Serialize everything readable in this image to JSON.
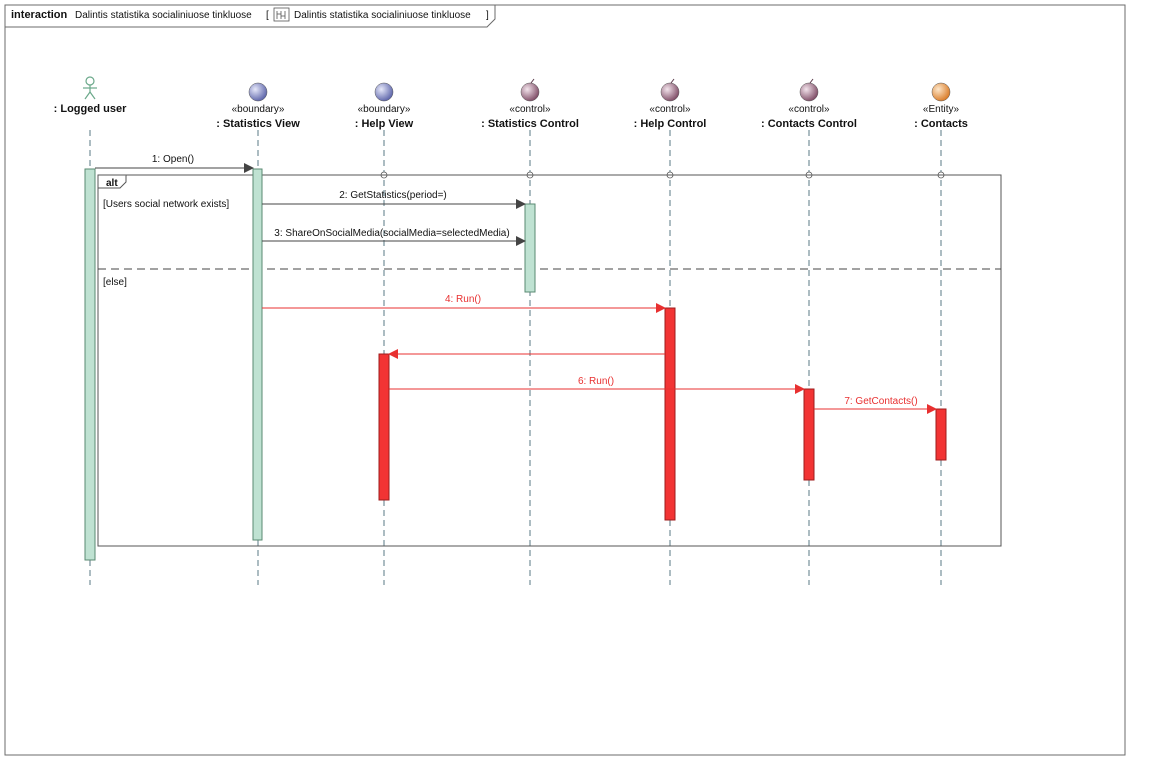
{
  "frame": {
    "keyword": "interaction",
    "name": "Dalintis statistika socialiniuose tinkluose",
    "ref_open": "[",
    "ref_name": "Dalintis statistika socialiniuose tinkluose",
    "ref_close": "]"
  },
  "lifelines": [
    {
      "id": "user",
      "kind": "actor",
      "stereotype": "",
      "name": ": Logged user",
      "color": "#9fd3b6"
    },
    {
      "id": "statview",
      "kind": "boundary",
      "stereotype": "«boundary»",
      "name": ": Statistics View",
      "color": "#7f86c2"
    },
    {
      "id": "helpview",
      "kind": "boundary",
      "stereotype": "«boundary»",
      "name": ": Help View",
      "color": "#7f86c2"
    },
    {
      "id": "statctrl",
      "kind": "control",
      "stereotype": "«control»",
      "name": ": Statistics Control",
      "color": "#9c6f86"
    },
    {
      "id": "helpctrl",
      "kind": "control",
      "stereotype": "«control»",
      "name": ": Help Control",
      "color": "#9c6f86"
    },
    {
      "id": "contactsctrl",
      "kind": "control",
      "stereotype": "«control»",
      "name": ": Contacts Control",
      "color": "#9c6f86"
    },
    {
      "id": "contacts",
      "kind": "entity",
      "stereotype": "«Entity»",
      "name": ": Contacts",
      "color": "#e0934a"
    }
  ],
  "fragment": {
    "operator": "alt",
    "operands": [
      {
        "guard": "[Users social network exists]"
      },
      {
        "guard": "[else]"
      }
    ]
  },
  "messages": [
    {
      "id": "m1",
      "label": "1: Open()",
      "from": "user",
      "to": "statview",
      "highlight": false
    },
    {
      "id": "m2",
      "label": "2: GetStatistics(period=)",
      "from": "statview",
      "to": "statctrl",
      "highlight": false
    },
    {
      "id": "m3",
      "label": "3: ShareOnSocialMedia(socialMedia=selectedMedia)",
      "from": "statview",
      "to": "statctrl",
      "highlight": false
    },
    {
      "id": "m4",
      "label": "4: Run()",
      "from": "statview",
      "to": "helpctrl",
      "highlight": true
    },
    {
      "id": "m5",
      "label": "",
      "from": "helpctrl",
      "to": "helpview",
      "highlight": true
    },
    {
      "id": "m6",
      "label": "6: Run()",
      "from": "helpview",
      "to": "contactsctrl",
      "highlight": true
    },
    {
      "id": "m7",
      "label": "7: GetContacts()",
      "from": "contactsctrl",
      "to": "contacts",
      "highlight": true
    }
  ],
  "colors": {
    "activation": "#bfe2d2",
    "activation_stroke": "#5a8a72",
    "highlight": "#e83030",
    "highlight_fill": "#f23434",
    "line": "#444444",
    "frame": "#555555"
  }
}
